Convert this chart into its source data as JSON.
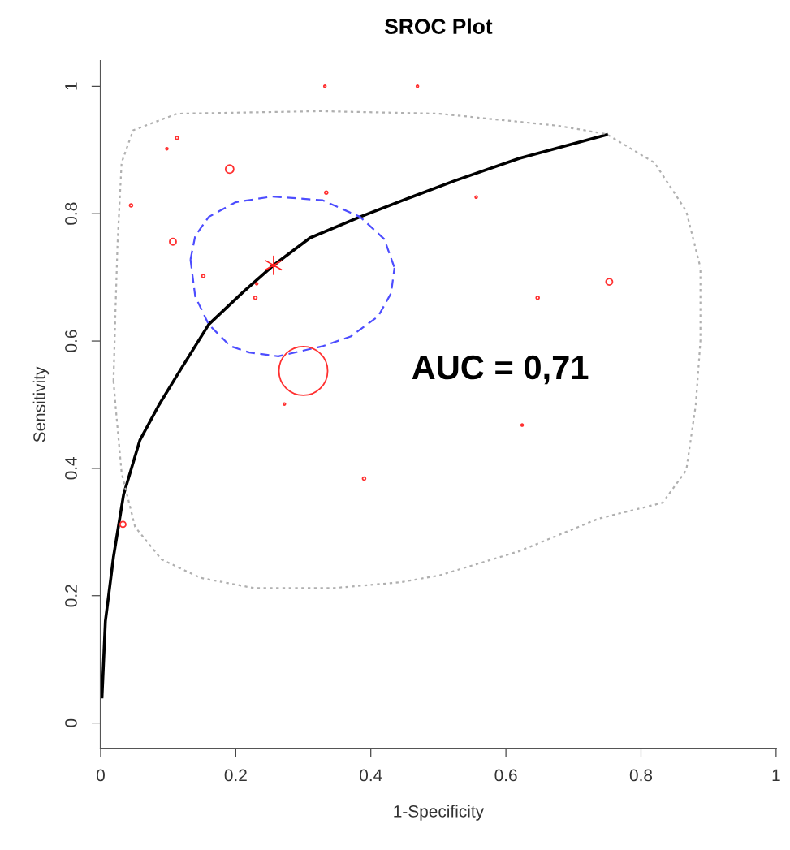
{
  "chart_data": {
    "type": "bubble",
    "title": "SROC Plot",
    "xlabel": "1-Specificity",
    "ylabel": "Sensitivity",
    "xlim": [
      0,
      1
    ],
    "ylim": [
      -0.04,
      1.04
    ],
    "xticks": [
      0,
      0.2,
      0.4,
      0.6,
      0.8,
      1
    ],
    "yticks": [
      0,
      0.2,
      0.4,
      0.6,
      0.8,
      1
    ],
    "grid": false,
    "annotations": [
      "AUC = 0,71"
    ],
    "series": [
      {
        "type": "line",
        "color": "#000000",
        "line_style": "solid",
        "marker": "none",
        "x": [
          0.002,
          0.007,
          0.019,
          0.034,
          0.058,
          0.086,
          0.113,
          0.16,
          0.211,
          0.256,
          0.31,
          0.384,
          0.45,
          0.525,
          0.62,
          0.749
        ],
        "values": [
          0.041,
          0.16,
          0.261,
          0.359,
          0.444,
          0.499,
          0.546,
          0.626,
          0.677,
          0.719,
          0.762,
          0.795,
          0.822,
          0.852,
          0.887,
          0.924
        ]
      },
      {
        "type": "line",
        "color": "#4d4dff",
        "line_style": "dashed",
        "marker": "none",
        "x": [
          0.133,
          0.14,
          0.16,
          0.2,
          0.254,
          0.329,
          0.384,
          0.42,
          0.435,
          null,
          0.133,
          0.14,
          0.16,
          0.192,
          0.22,
          0.263,
          0.329,
          0.37,
          0.411,
          0.43,
          0.435
        ],
        "values": [
          0.728,
          0.765,
          0.795,
          0.818,
          0.827,
          0.821,
          0.795,
          0.76,
          0.715,
          null,
          0.728,
          0.67,
          0.626,
          0.592,
          0.582,
          0.576,
          0.592,
          0.607,
          0.639,
          0.675,
          0.715
        ]
      },
      {
        "type": "line",
        "color": "#b0b0b0",
        "line_style": "dotted",
        "marker": "none",
        "x": [
          0.019,
          0.022,
          0.025,
          0.031,
          0.048,
          0.113,
          0.325,
          0.502,
          0.678,
          0.749,
          0.82,
          0.867,
          0.888,
          null,
          0.019,
          0.022,
          0.031,
          0.051,
          0.09,
          0.148,
          0.227,
          0.345,
          0.443,
          0.502,
          0.62,
          0.737,
          0.832,
          0.867,
          0.881,
          0.888,
          0.888
        ],
        "values": [
          0.537,
          0.65,
          0.753,
          0.88,
          0.931,
          0.957,
          0.961,
          0.957,
          0.938,
          0.925,
          0.88,
          0.804,
          0.715,
          null,
          0.537,
          0.499,
          0.393,
          0.308,
          0.257,
          0.228,
          0.212,
          0.212,
          0.221,
          0.232,
          0.27,
          0.321,
          0.346,
          0.397,
          0.499,
          0.601,
          0.715
        ]
      },
      {
        "color": "#ff3030",
        "x": [
          0.332,
          0.469,
          0.113,
          0.098,
          0.191,
          0.045,
          0.334,
          0.107,
          0.152,
          0.231,
          0.229,
          0.3,
          0.272,
          0.556,
          0.753,
          0.647,
          0.624,
          0.39,
          0.033
        ],
        "values": [
          1.0,
          1.0,
          0.919,
          0.902,
          0.87,
          0.813,
          0.833,
          0.756,
          0.702,
          0.69,
          0.668,
          0.553,
          0.501,
          0.826,
          0.693,
          0.668,
          0.468,
          0.384,
          0.312
        ],
        "sizes": [
          0.002,
          0.002,
          0.004,
          0.002,
          0.028,
          0.004,
          0.004,
          0.018,
          0.004,
          0.002,
          0.004,
          1,
          0.002,
          0.002,
          0.018,
          0.004,
          0.002,
          0.004,
          0.014
        ]
      },
      {
        "type": "scatter",
        "color": "#ff2020",
        "marker": "cross",
        "x": [
          0.256
        ],
        "values": [
          0.719
        ]
      }
    ]
  }
}
